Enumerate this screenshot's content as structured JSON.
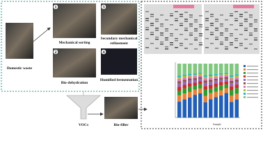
{
  "left_panel": {
    "domestic_waste": "Domestic waste",
    "steps": [
      {
        "number": "1",
        "label": "Mechanical sorting"
      },
      {
        "number": "2",
        "label": "Bio-dehydration"
      },
      {
        "number": "3",
        "label": [
          "Secondary mechanical",
          "refinement"
        ]
      },
      {
        "number": "4",
        "label": "Humified fermentation"
      }
    ]
  },
  "bottom": {
    "vocs": "VOCs",
    "biofilter": "Bio-filler"
  },
  "right_panel": {
    "chart_x_label": "Sample"
  }
}
